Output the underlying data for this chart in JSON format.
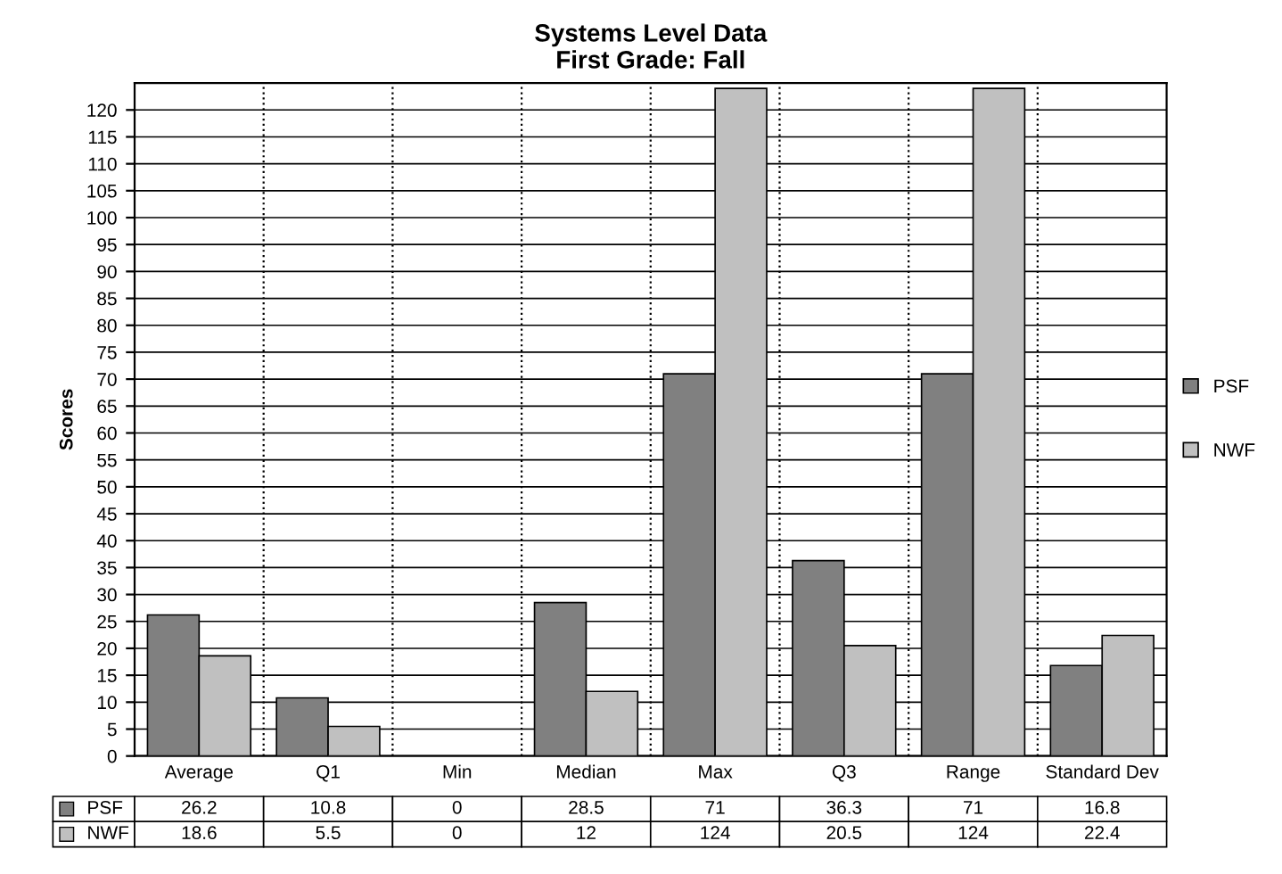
{
  "chart_data": {
    "type": "bar",
    "title": "Systems Level Data\nFirst Grade: Fall",
    "ylabel": "Scores",
    "categories": [
      "Average",
      "Q1",
      "Min",
      "Median",
      "Max",
      "Q3",
      "Range",
      "Standard Dev"
    ],
    "series": [
      {
        "name": "PSF",
        "color": "#808080",
        "values": [
          26.2,
          10.8,
          0,
          28.5,
          71,
          36.3,
          71,
          16.8
        ]
      },
      {
        "name": "NWF",
        "color": "#c0c0c0",
        "values": [
          18.6,
          5.5,
          0,
          12,
          124,
          20.5,
          124,
          22.4
        ]
      }
    ],
    "ylim": [
      0,
      125
    ],
    "yticks": [
      0,
      5,
      10,
      15,
      20,
      25,
      30,
      35,
      40,
      45,
      50,
      55,
      60,
      65,
      70,
      75,
      80,
      85,
      90,
      95,
      100,
      105,
      110,
      115,
      120
    ],
    "grid": true,
    "legend": "right",
    "data_labels": true
  }
}
